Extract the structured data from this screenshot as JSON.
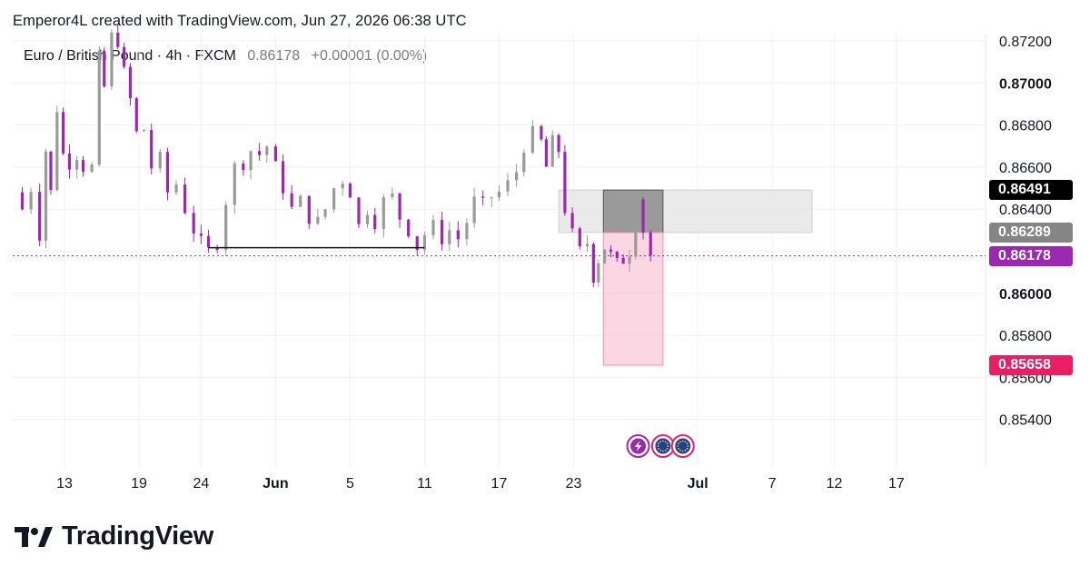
{
  "header": {
    "title": "Emperor4L created with TradingView.com, Jun 27, 2026 06:38 UTC"
  },
  "symbol": {
    "name": "Euro / British Pound · 4h · FXCM",
    "price": "0.86178",
    "change": "+0.00001 (0.00%)"
  },
  "brand": {
    "name": "TradingView"
  },
  "colors": {
    "up_candle": "#9a9a9a",
    "down_candle": "#9c27b0",
    "current_price": "#9c27b0",
    "target_zone": "#f8bbd0",
    "stop_zone": "#8c8c8c",
    "range_zone": "#e6e6e6",
    "target_badge": "#e91e63",
    "entry_badge": "#858585",
    "stop_badge": "#000000"
  },
  "price_badges": [
    {
      "label": "0.86491",
      "value": 0.86491,
      "color": "#000000"
    },
    {
      "label": "0.86289",
      "value": 0.86289,
      "color": "#858585"
    },
    {
      "label": "0.86178",
      "value": 0.86178,
      "color": "#9c27b0"
    },
    {
      "label": "0.85658",
      "value": 0.85658,
      "color": "#e91e63"
    }
  ],
  "chart_data": {
    "type": "candlestick",
    "timeframe": "4h",
    "ylim": [
      0.8525,
      0.8725
    ],
    "y_ticks": [
      {
        "label": "0.87200",
        "value": 0.872,
        "bold": false
      },
      {
        "label": "0.87000",
        "value": 0.87,
        "bold": true
      },
      {
        "label": "0.86800",
        "value": 0.868,
        "bold": false
      },
      {
        "label": "0.86600",
        "value": 0.866,
        "bold": false
      },
      {
        "label": "0.86400",
        "value": 0.864,
        "bold": false
      },
      {
        "label": "0.86200",
        "value": 0.862,
        "bold": false
      },
      {
        "label": "0.86000",
        "value": 0.86,
        "bold": true
      },
      {
        "label": "0.85800",
        "value": 0.858,
        "bold": false
      },
      {
        "label": "0.85600",
        "value": 0.856,
        "bold": false
      },
      {
        "label": "0.85400",
        "value": 0.854,
        "bold": false
      }
    ],
    "x_ticks": [
      {
        "label": "13",
        "day": 13,
        "bold": false
      },
      {
        "label": "19",
        "day": 19,
        "bold": false
      },
      {
        "label": "24",
        "day": 24,
        "bold": false
      },
      {
        "label": "Jun",
        "day": 30,
        "bold": true
      },
      {
        "label": "5",
        "day": 36,
        "bold": false
      },
      {
        "label": "11",
        "day": 42,
        "bold": false
      },
      {
        "label": "17",
        "day": 48,
        "bold": false
      },
      {
        "label": "23",
        "day": 54,
        "bold": false
      },
      {
        "label": "Jul",
        "day": 64,
        "bold": true
      },
      {
        "label": "7",
        "day": 70,
        "bold": false
      },
      {
        "label": "12",
        "day": 75,
        "bold": false
      },
      {
        "label": "17",
        "day": 80,
        "bold": false
      }
    ],
    "last_price": 0.86178,
    "path": [
      [
        8.9,
        0.8648
      ],
      [
        9.6,
        0.864
      ],
      [
        10.3,
        0.865
      ],
      [
        11.0,
        0.8628
      ],
      [
        11.5,
        0.8668
      ],
      [
        11.9,
        0.8648
      ],
      [
        12.4,
        0.8688
      ],
      [
        12.9,
        0.8666
      ],
      [
        13.4,
        0.8662
      ],
      [
        14.0,
        0.8666
      ],
      [
        14.5,
        0.866
      ],
      [
        15.2,
        0.866
      ],
      [
        15.8,
        0.8712
      ],
      [
        16.2,
        0.8698
      ],
      [
        16.8,
        0.8722
      ],
      [
        17.3,
        0.872
      ],
      [
        17.8,
        0.8705
      ],
      [
        18.3,
        0.8692
      ],
      [
        18.8,
        0.8676
      ],
      [
        19.4,
        0.8678
      ],
      [
        20.0,
        0.866
      ],
      [
        20.7,
        0.8664
      ],
      [
        21.3,
        0.8648
      ],
      [
        22.0,
        0.8652
      ],
      [
        22.7,
        0.864
      ],
      [
        23.4,
        0.863
      ],
      [
        24.0,
        0.8624
      ],
      [
        24.6,
        0.862
      ],
      [
        25.3,
        0.8624
      ],
      [
        26.0,
        0.8644
      ],
      [
        26.7,
        0.866
      ],
      [
        27.4,
        0.8662
      ],
      [
        28.0,
        0.8668
      ],
      [
        28.7,
        0.8666
      ],
      [
        29.3,
        0.867
      ],
      [
        30.0,
        0.866
      ],
      [
        30.6,
        0.865
      ],
      [
        31.3,
        0.864
      ],
      [
        32.0,
        0.8644
      ],
      [
        32.7,
        0.8636
      ],
      [
        33.4,
        0.8634
      ],
      [
        34.0,
        0.864
      ],
      [
        34.7,
        0.865
      ],
      [
        35.4,
        0.8654
      ],
      [
        36.0,
        0.8648
      ],
      [
        36.7,
        0.8632
      ],
      [
        37.4,
        0.864
      ],
      [
        38.0,
        0.8634
      ],
      [
        38.7,
        0.8644
      ],
      [
        39.4,
        0.8646
      ],
      [
        40.0,
        0.8636
      ],
      [
        40.7,
        0.863
      ],
      [
        41.4,
        0.8622
      ],
      [
        42.0,
        0.8628
      ],
      [
        42.7,
        0.8632
      ],
      [
        43.4,
        0.8626
      ],
      [
        44.0,
        0.863
      ],
      [
        44.7,
        0.8626
      ],
      [
        45.4,
        0.8634
      ],
      [
        46.0,
        0.8644
      ],
      [
        46.7,
        0.8642
      ],
      [
        47.4,
        0.8646
      ],
      [
        48.0,
        0.8648
      ],
      [
        48.7,
        0.8652
      ],
      [
        49.4,
        0.8658
      ],
      [
        50.0,
        0.867
      ],
      [
        50.7,
        0.8676
      ],
      [
        51.4,
        0.8672
      ],
      [
        51.8,
        0.866
      ],
      [
        52.3,
        0.8672
      ],
      [
        52.8,
        0.8668
      ],
      [
        53.3,
        0.864
      ],
      [
        53.9,
        0.8628
      ],
      [
        54.5,
        0.862
      ],
      [
        55.1,
        0.8624
      ],
      [
        55.6,
        0.8608
      ],
      [
        56.0,
        0.8616
      ],
      [
        56.5,
        0.8622
      ],
      [
        57.0,
        0.8618
      ],
      [
        57.5,
        0.8614
      ],
      [
        58.0,
        0.8616
      ],
      [
        58.5,
        0.862
      ],
      [
        59.0,
        0.8648
      ],
      [
        59.6,
        0.863
      ],
      [
        60.2,
        0.8618
      ]
    ],
    "annotations": [
      {
        "kind": "horizontal-line",
        "price": 0.86217,
        "from_day": 24.6,
        "to_day": 42.0
      },
      {
        "kind": "range-box",
        "top": 0.86491,
        "bottom": 0.86289,
        "from_day": 52.8,
        "to_day": 73.2
      },
      {
        "kind": "stop-box",
        "top": 0.86491,
        "bottom": 0.86289,
        "from_day": 56.4,
        "to_day": 61.2
      },
      {
        "kind": "target-box",
        "top": 0.86289,
        "bottom": 0.85658,
        "from_day": 56.4,
        "to_day": 61.2
      }
    ],
    "event_markers": [
      {
        "icon": "lightning-icon",
        "day": 59.2,
        "ring": "#9c27b0"
      },
      {
        "icon": "eu-flag-icon",
        "day": 61.2,
        "ring": "#e91e63"
      },
      {
        "icon": "eu-flag-icon",
        "day": 62.8,
        "ring": "#e91e63"
      }
    ]
  }
}
